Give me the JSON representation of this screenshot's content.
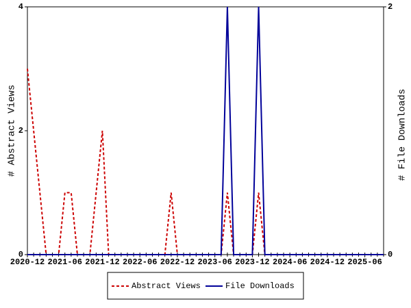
{
  "chart_data": {
    "type": "line",
    "x": [
      "2020-12",
      "2021-01",
      "2021-02",
      "2021-03",
      "2021-04",
      "2021-05",
      "2021-06",
      "2021-07",
      "2021-08",
      "2021-09",
      "2021-10",
      "2021-11",
      "2021-12",
      "2022-01",
      "2022-02",
      "2022-03",
      "2022-04",
      "2022-05",
      "2022-06",
      "2022-07",
      "2022-08",
      "2022-09",
      "2022-10",
      "2022-11",
      "2022-12",
      "2023-01",
      "2023-02",
      "2023-03",
      "2023-04",
      "2023-05",
      "2023-06",
      "2023-07",
      "2023-08",
      "2023-09",
      "2023-10",
      "2023-11",
      "2023-12",
      "2024-01",
      "2024-02",
      "2024-03",
      "2024-04",
      "2024-05",
      "2024-06",
      "2024-07",
      "2024-08",
      "2024-09",
      "2024-10",
      "2024-11",
      "2024-12",
      "2025-01",
      "2025-02",
      "2025-03",
      "2025-04",
      "2025-05",
      "2025-06",
      "2025-07",
      "2025-08",
      "2025-09"
    ],
    "ylabel": "# Abstract Views",
    "y2label": "# File Downloads",
    "ylim": [
      0,
      4
    ],
    "yticks": [
      0,
      2,
      4
    ],
    "y2lim": [
      0,
      2
    ],
    "y2ticks": [
      0,
      2
    ],
    "series": [
      {
        "name": "Abstract Views",
        "color": "#cc0000",
        "dash": true,
        "values": [
          3,
          2,
          1,
          0,
          0,
          0,
          1,
          1,
          0,
          0,
          0,
          1,
          2,
          0,
          0,
          0,
          0,
          0,
          0,
          0,
          0,
          0,
          0,
          1,
          0,
          0,
          0,
          0,
          0,
          0,
          0,
          0,
          1,
          0,
          0,
          0,
          0,
          1,
          0,
          0,
          0,
          0,
          0,
          0,
          0,
          0,
          0,
          0,
          0,
          0,
          0,
          0,
          0,
          0,
          0,
          0,
          0,
          0
        ]
      },
      {
        "name": "File Downloads",
        "color": "#000099",
        "dash": false,
        "axis": "y2",
        "values": [
          0,
          0,
          0,
          0,
          0,
          0,
          0,
          0,
          0,
          0,
          0,
          0,
          0,
          0,
          0,
          0,
          0,
          0,
          0,
          0,
          0,
          0,
          0,
          0,
          0,
          0,
          0,
          0,
          0,
          0,
          0,
          0,
          2,
          0,
          0,
          0,
          0,
          2,
          0,
          0,
          0,
          0,
          0,
          0,
          0,
          0,
          0,
          0,
          0,
          0,
          0,
          0,
          0,
          0,
          0,
          0,
          0,
          0
        ]
      }
    ]
  }
}
